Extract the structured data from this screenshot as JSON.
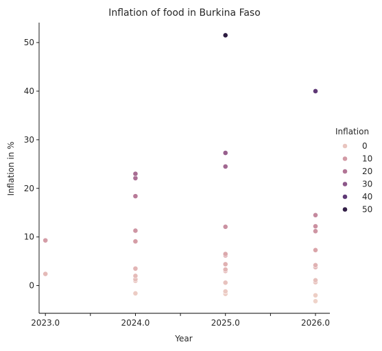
{
  "chart_data": {
    "type": "scatter",
    "title": "Inflation of food in Burkina Faso",
    "xlabel": "Year",
    "ylabel": "Inflation in %",
    "xlim": [
      2022.93,
      2026.16
    ],
    "ylim": [
      -5.7,
      54.1
    ],
    "x_ticks": [
      2023.0,
      2023.5,
      2024.0,
      2024.5,
      2025.0,
      2025.5,
      2026.0
    ],
    "x_tick_labels": [
      "2023.0",
      "",
      "2024.0",
      "",
      "2025.0",
      "",
      "2026.0"
    ],
    "y_ticks": [
      0,
      10,
      20,
      30,
      40,
      50
    ],
    "y_tick_labels": [
      "0",
      "10",
      "20",
      "30",
      "40",
      "50"
    ],
    "grid": false,
    "legend": {
      "title": "Inflation",
      "placement": "right",
      "entries": [
        {
          "label": "0",
          "value": 0
        },
        {
          "label": "10",
          "value": 10
        },
        {
          "label": "20",
          "value": 20
        },
        {
          "label": "30",
          "value": 30
        },
        {
          "label": "40",
          "value": 40
        },
        {
          "label": "50",
          "value": 50
        }
      ]
    },
    "hue_range": [
      -3.2,
      51.5
    ],
    "palette": [
      "#efd3c9",
      "#d9a2a8",
      "#b77998",
      "#8e588a",
      "#5c3775",
      "#2c1b40"
    ],
    "points": [
      {
        "x": 2023.0,
        "y": 9.3
      },
      {
        "x": 2023.0,
        "y": 2.4
      },
      {
        "x": 2024.0,
        "y": 23.0
      },
      {
        "x": 2024.0,
        "y": 22.1
      },
      {
        "x": 2024.0,
        "y": 18.4
      },
      {
        "x": 2024.0,
        "y": 11.3
      },
      {
        "x": 2024.0,
        "y": 9.1
      },
      {
        "x": 2024.0,
        "y": 3.5
      },
      {
        "x": 2024.0,
        "y": 2.0
      },
      {
        "x": 2024.0,
        "y": 1.3
      },
      {
        "x": 2024.0,
        "y": 1.0
      },
      {
        "x": 2024.0,
        "y": -1.6
      },
      {
        "x": 2025.0,
        "y": 51.5
      },
      {
        "x": 2025.0,
        "y": 27.3
      },
      {
        "x": 2025.0,
        "y": 24.5
      },
      {
        "x": 2025.0,
        "y": 12.1
      },
      {
        "x": 2025.0,
        "y": 6.5
      },
      {
        "x": 2025.0,
        "y": 6.2
      },
      {
        "x": 2025.0,
        "y": 4.4
      },
      {
        "x": 2025.0,
        "y": 3.3
      },
      {
        "x": 2025.0,
        "y": 3.0
      },
      {
        "x": 2025.0,
        "y": 0.6
      },
      {
        "x": 2025.0,
        "y": -1.2
      },
      {
        "x": 2025.0,
        "y": -1.7
      },
      {
        "x": 2026.0,
        "y": 40.0
      },
      {
        "x": 2026.0,
        "y": 14.5
      },
      {
        "x": 2026.0,
        "y": 12.2
      },
      {
        "x": 2026.0,
        "y": 11.2
      },
      {
        "x": 2026.0,
        "y": 7.3
      },
      {
        "x": 2026.0,
        "y": 4.2
      },
      {
        "x": 2026.0,
        "y": 3.8
      },
      {
        "x": 2026.0,
        "y": 1.1
      },
      {
        "x": 2026.0,
        "y": 0.7
      },
      {
        "x": 2026.0,
        "y": -2.0
      },
      {
        "x": 2026.0,
        "y": -3.2
      }
    ]
  }
}
